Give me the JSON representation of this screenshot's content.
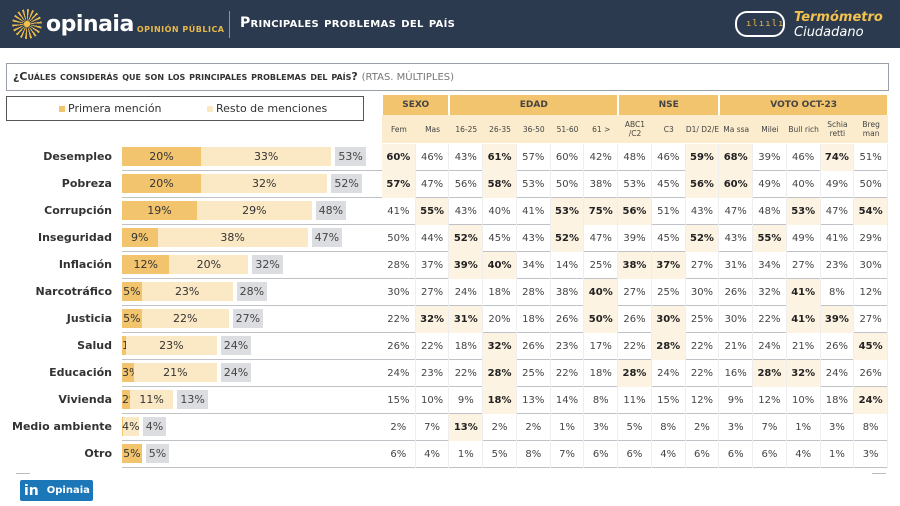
{
  "header": {
    "brand": "opinaia",
    "brand_sub": "OPINIÓN PÚBLICA",
    "title": "Principales problemas del país",
    "badge_line1": "Termómetro",
    "badge_line2": "Ciudadano"
  },
  "question": {
    "text": "¿Cuáles considerás que son los principales problemas del país?",
    "note": "(RTAS. MÚLTIPLES)"
  },
  "legend": {
    "first": "Primera mención",
    "rest": "Resto de menciones"
  },
  "colors": {
    "header_bg": "#2b3a4f",
    "accent": "#e8b84a",
    "first_mention": "#f2c46e",
    "rest_mentions": "#fbe8c4",
    "total": "#dcdde0",
    "highlight": "#fcf3e2"
  },
  "table": {
    "groups": [
      {
        "label": "SEXO",
        "span": 2
      },
      {
        "label": "EDAD",
        "span": 5
      },
      {
        "label": "NSE",
        "span": 3
      },
      {
        "label": "VOTO OCT-23",
        "span": 5
      }
    ],
    "columns": [
      "Fem",
      "Mas",
      "16-25",
      "26-35",
      "36-50",
      "51-60",
      "61 >",
      "ABC1 /C2",
      "C3",
      "D1/ D2/E",
      "Ma ssa",
      "Milei",
      "Bull rich",
      "Schia retti",
      "Breg man"
    ]
  },
  "chart_data": {
    "type": "bar",
    "stacked": true,
    "categories": [
      "Desempleo",
      "Pobreza",
      "Corrupción",
      "Inseguridad",
      "Inflación",
      "Narcotráfico",
      "Justicia",
      "Salud",
      "Educación",
      "Vivienda",
      "Medio ambiente",
      "Otro"
    ],
    "series": [
      {
        "name": "Primera mención",
        "values": [
          20,
          20,
          19,
          9,
          12,
          5,
          5,
          1,
          3,
          2,
          0,
          5
        ],
        "labels": [
          "20%",
          "20%",
          "19%",
          "9%",
          "12%",
          "5%",
          "5%",
          "1%",
          "3%",
          "2%",
          "",
          "5%"
        ]
      },
      {
        "name": "Resto de menciones",
        "values": [
          33,
          32,
          29,
          38,
          20,
          23,
          22,
          23,
          21,
          11,
          4,
          0
        ],
        "labels": [
          "33%",
          "32%",
          "29%",
          "38%",
          "20%",
          "23%",
          "22%",
          "23%",
          "21%",
          "11%",
          "4%",
          ""
        ]
      }
    ],
    "totals": [
      "53%",
      "52%",
      "48%",
      "47%",
      "32%",
      "28%",
      "27%",
      "24%",
      "24%",
      "13%",
      "4%",
      "5%"
    ],
    "total_values": [
      53,
      52,
      48,
      47,
      32,
      28,
      27,
      24,
      24,
      13,
      4,
      5
    ]
  },
  "rows": [
    {
      "values": [
        "60%",
        "46%",
        "43%",
        "61%",
        "57%",
        "60%",
        "42%",
        "48%",
        "46%",
        "59%",
        "68%",
        "39%",
        "46%",
        "74%",
        "51%"
      ],
      "bold": [
        0,
        3,
        9,
        10,
        13
      ]
    },
    {
      "values": [
        "57%",
        "47%",
        "56%",
        "58%",
        "53%",
        "50%",
        "38%",
        "53%",
        "45%",
        "56%",
        "60%",
        "49%",
        "40%",
        "49%",
        "50%"
      ],
      "bold": [
        0,
        3,
        9,
        10
      ]
    },
    {
      "values": [
        "41%",
        "55%",
        "43%",
        "40%",
        "41%",
        "53%",
        "75%",
        "56%",
        "51%",
        "43%",
        "47%",
        "48%",
        "53%",
        "47%",
        "54%"
      ],
      "bold": [
        1,
        5,
        6,
        7,
        12,
        14
      ]
    },
    {
      "values": [
        "50%",
        "44%",
        "52%",
        "45%",
        "43%",
        "52%",
        "47%",
        "39%",
        "45%",
        "52%",
        "43%",
        "55%",
        "49%",
        "41%",
        "29%"
      ],
      "bold": [
        2,
        5,
        9,
        11
      ]
    },
    {
      "values": [
        "28%",
        "37%",
        "39%",
        "40%",
        "34%",
        "14%",
        "25%",
        "38%",
        "37%",
        "27%",
        "31%",
        "34%",
        "27%",
        "23%",
        "30%"
      ],
      "bold": [
        2,
        3,
        7,
        8
      ]
    },
    {
      "values": [
        "30%",
        "27%",
        "24%",
        "18%",
        "28%",
        "38%",
        "40%",
        "27%",
        "25%",
        "30%",
        "26%",
        "32%",
        "41%",
        "8%",
        "12%"
      ],
      "bold": [
        6,
        12
      ]
    },
    {
      "values": [
        "22%",
        "32%",
        "31%",
        "20%",
        "18%",
        "26%",
        "50%",
        "26%",
        "30%",
        "25%",
        "30%",
        "22%",
        "41%",
        "39%",
        "27%"
      ],
      "bold": [
        1,
        2,
        6,
        8,
        12,
        13
      ]
    },
    {
      "values": [
        "26%",
        "22%",
        "18%",
        "32%",
        "26%",
        "23%",
        "17%",
        "22%",
        "28%",
        "22%",
        "21%",
        "24%",
        "21%",
        "26%",
        "45%"
      ],
      "bold": [
        3,
        8,
        14
      ]
    },
    {
      "values": [
        "24%",
        "23%",
        "22%",
        "28%",
        "25%",
        "22%",
        "18%",
        "28%",
        "24%",
        "22%",
        "16%",
        "28%",
        "32%",
        "24%",
        "26%"
      ],
      "bold": [
        3,
        7,
        11,
        12
      ]
    },
    {
      "values": [
        "15%",
        "10%",
        "9%",
        "18%",
        "13%",
        "14%",
        "8%",
        "11%",
        "15%",
        "12%",
        "9%",
        "12%",
        "10%",
        "18%",
        "24%"
      ],
      "bold": [
        3,
        14
      ]
    },
    {
      "values": [
        "2%",
        "7%",
        "13%",
        "2%",
        "2%",
        "1%",
        "3%",
        "5%",
        "8%",
        "2%",
        "3%",
        "7%",
        "1%",
        "3%",
        "8%"
      ],
      "bold": [
        2
      ]
    },
    {
      "values": [
        "6%",
        "4%",
        "1%",
        "5%",
        "8%",
        "7%",
        "6%",
        "6%",
        "4%",
        "6%",
        "6%",
        "6%",
        "4%",
        "1%",
        "3%"
      ],
      "bold": []
    }
  ],
  "footer": {
    "linkedin_icon": "in",
    "linkedin_label": "Opinaia"
  }
}
